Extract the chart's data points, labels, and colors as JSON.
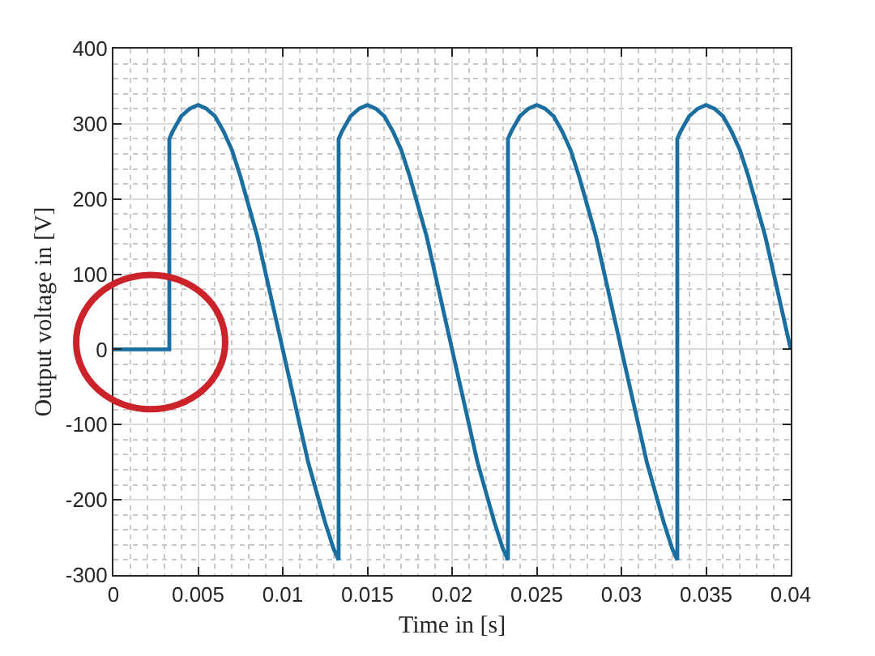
{
  "chart_data": {
    "type": "line",
    "xlabel": "Time in [s]",
    "ylabel": "Output voltage in [V]",
    "x": [
      0,
      0.0033,
      0.0033,
      0.0035,
      0.004,
      0.0045,
      0.005,
      0.0055,
      0.006,
      0.0065,
      0.007,
      0.0075,
      0.008,
      0.0085,
      0.009,
      0.0095,
      0.01,
      0.0105,
      0.011,
      0.0115,
      0.012,
      0.0125,
      0.013,
      0.0133,
      0.0133,
      0.0135,
      0.014,
      0.0145,
      0.015,
      0.0155,
      0.016,
      0.0165,
      0.017,
      0.0175,
      0.018,
      0.0185,
      0.019,
      0.0195,
      0.02,
      0.0205,
      0.021,
      0.0215,
      0.022,
      0.0225,
      0.023,
      0.0233,
      0.0233,
      0.0235,
      0.024,
      0.0245,
      0.025,
      0.0255,
      0.026,
      0.0265,
      0.027,
      0.0275,
      0.028,
      0.0285,
      0.029,
      0.0295,
      0.03,
      0.0305,
      0.031,
      0.0315,
      0.032,
      0.0325,
      0.033,
      0.0333,
      0.0333,
      0.0335,
      0.034,
      0.0345,
      0.035,
      0.0355,
      0.036,
      0.0365,
      0.037,
      0.0375,
      0.038,
      0.0385,
      0.039,
      0.0395,
      0.04
    ],
    "series": [
      {
        "color": "#1a6fa0",
        "values": [
          0,
          0,
          280,
          290,
          310,
          320,
          325,
          320,
          310,
          290,
          265,
          230,
          190,
          150,
          100,
          50,
          0,
          -50,
          -100,
          -150,
          -190,
          -230,
          -265,
          -280,
          280,
          290,
          310,
          320,
          325,
          320,
          310,
          290,
          265,
          230,
          190,
          150,
          100,
          50,
          0,
          -50,
          -100,
          -150,
          -190,
          -230,
          -265,
          -280,
          280,
          290,
          310,
          320,
          325,
          320,
          310,
          290,
          265,
          230,
          190,
          150,
          100,
          50,
          0,
          -50,
          -100,
          -150,
          -190,
          -230,
          -265,
          -280,
          280,
          290,
          310,
          320,
          325,
          320,
          310,
          290,
          265,
          230,
          190,
          150,
          100,
          50,
          0
        ]
      }
    ],
    "xlim": [
      0,
      0.04
    ],
    "ylim": [
      -300,
      400
    ],
    "xticks": [
      0,
      0.005,
      0.01,
      0.015,
      0.02,
      0.025,
      0.03,
      0.035,
      0.04
    ],
    "yticks": [
      -300,
      -200,
      -100,
      0,
      100,
      200,
      300,
      400
    ],
    "grid": true,
    "line_style": "solid"
  }
}
